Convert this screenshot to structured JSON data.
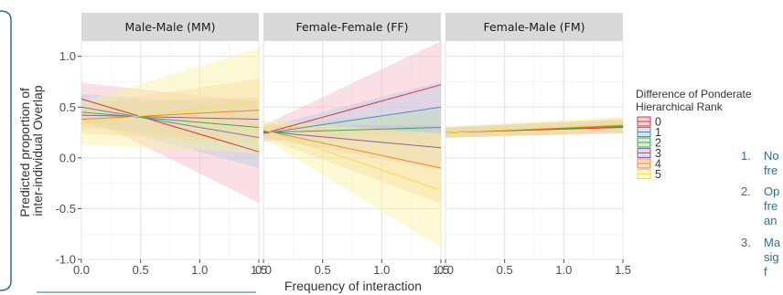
{
  "chart_data": {
    "type": "line",
    "xlabel": "Frequency of interaction",
    "ylabel": [
      "Predicted proportion of",
      "inter-individual Overlap"
    ],
    "xlim": [
      0,
      1.5
    ],
    "ylim": [
      -1.0,
      1.15
    ],
    "x_ticks": [
      "0.0",
      "0.5",
      "1.0",
      "1.5"
    ],
    "y_ticks": [
      "-1.0",
      "-0.5",
      "0.0",
      "0.5",
      "1.0"
    ],
    "grid": true,
    "legend": {
      "title": [
        "Difference of Ponderate",
        "Hierarchical Rank"
      ],
      "placement": "right"
    },
    "series_colors": [
      "#e0323c",
      "#5a83c4",
      "#3aaa55",
      "#8a5ea8",
      "#f08a24",
      "#f2e24a"
    ],
    "band_colors": [
      "#f4b7c4",
      "#b9cde8",
      "#b8dfb4",
      "#ccb8dc",
      "#f8c99a",
      "#fbf2a2"
    ],
    "panels": [
      {
        "title": "Male-Male (MM)",
        "series": [
          {
            "name": "0",
            "x": [
              0,
              1.5
            ],
            "y": [
              0.58,
              0.06
            ],
            "lower": [
              0.42,
              -0.44
            ],
            "upper": [
              0.74,
              0.55
            ]
          },
          {
            "name": "1",
            "x": [
              0,
              1.5
            ],
            "y": [
              0.5,
              0.2
            ],
            "lower": [
              0.37,
              -0.1
            ],
            "upper": [
              0.63,
              0.5
            ]
          },
          {
            "name": "2",
            "x": [
              0,
              1.5
            ],
            "y": [
              0.45,
              0.3
            ],
            "lower": [
              0.33,
              0.05
            ],
            "upper": [
              0.57,
              0.55
            ]
          },
          {
            "name": "3",
            "x": [
              0,
              1.5
            ],
            "y": [
              0.42,
              0.38
            ],
            "lower": [
              0.3,
              0.15
            ],
            "upper": [
              0.54,
              0.6
            ]
          },
          {
            "name": "4",
            "x": [
              0,
              1.5
            ],
            "y": [
              0.38,
              0.47
            ],
            "lower": [
              0.24,
              0.15
            ],
            "upper": [
              0.52,
              0.78
            ]
          },
          {
            "name": "5",
            "x": [
              0,
              1.5
            ],
            "y": [
              0.34,
              0.56
            ],
            "lower": [
              0.13,
              0.05
            ],
            "upper": [
              0.55,
              1.08
            ]
          }
        ]
      },
      {
        "title": "Female-Female (FF)",
        "series": [
          {
            "name": "0",
            "x": [
              0,
              1.5
            ],
            "y": [
              0.24,
              0.72
            ],
            "lower": [
              0.16,
              0.28
            ],
            "upper": [
              0.32,
              1.15
            ]
          },
          {
            "name": "1",
            "x": [
              0,
              1.5
            ],
            "y": [
              0.24,
              0.5
            ],
            "lower": [
              0.18,
              0.25
            ],
            "upper": [
              0.3,
              0.75
            ]
          },
          {
            "name": "2",
            "x": [
              0,
              1.5
            ],
            "y": [
              0.25,
              0.3
            ],
            "lower": [
              0.19,
              0.12
            ],
            "upper": [
              0.31,
              0.48
            ]
          },
          {
            "name": "3",
            "x": [
              0,
              1.5
            ],
            "y": [
              0.26,
              0.1
            ],
            "lower": [
              0.2,
              -0.12
            ],
            "upper": [
              0.32,
              0.32
            ]
          },
          {
            "name": "4",
            "x": [
              0,
              1.5
            ],
            "y": [
              0.27,
              -0.1
            ],
            "lower": [
              0.2,
              -0.45
            ],
            "upper": [
              0.34,
              0.25
            ]
          },
          {
            "name": "5",
            "x": [
              0,
              1.5
            ],
            "y": [
              0.28,
              -0.32
            ],
            "lower": [
              0.19,
              -0.88
            ],
            "upper": [
              0.37,
              0.24
            ]
          }
        ]
      },
      {
        "title": "Female-Male (FM)",
        "series": [
          {
            "name": "0",
            "x": [
              0,
              1.5
            ],
            "y": [
              0.25,
              0.3
            ],
            "lower": [
              0.2,
              0.24
            ],
            "upper": [
              0.3,
              0.36
            ]
          },
          {
            "name": "1",
            "x": [
              0,
              1.5
            ],
            "y": [
              0.25,
              0.31
            ],
            "lower": [
              0.2,
              0.25
            ],
            "upper": [
              0.3,
              0.37
            ]
          },
          {
            "name": "2",
            "x": [
              0,
              1.5
            ],
            "y": [
              0.25,
              0.31
            ],
            "lower": [
              0.2,
              0.25
            ],
            "upper": [
              0.3,
              0.37
            ]
          },
          {
            "name": "3",
            "x": [
              0,
              1.5
            ],
            "y": [
              0.25,
              0.32
            ],
            "lower": [
              0.2,
              0.25
            ],
            "upper": [
              0.3,
              0.38
            ]
          },
          {
            "name": "4",
            "x": [
              0,
              1.5
            ],
            "y": [
              0.25,
              0.32
            ],
            "lower": [
              0.2,
              0.25
            ],
            "upper": [
              0.3,
              0.39
            ]
          },
          {
            "name": "5",
            "x": [
              0,
              1.5
            ],
            "y": [
              0.25,
              0.33
            ],
            "lower": [
              0.19,
              0.25
            ],
            "upper": [
              0.31,
              0.41
            ]
          }
        ]
      }
    ]
  },
  "side_notes": [
    {
      "number": "1.",
      "lines": [
        "No",
        "fre"
      ]
    },
    {
      "number": "2.",
      "lines": [
        "Op",
        "fre",
        "an"
      ]
    },
    {
      "number": "3.",
      "lines": [
        "Ma",
        "sig",
        "f"
      ]
    }
  ]
}
